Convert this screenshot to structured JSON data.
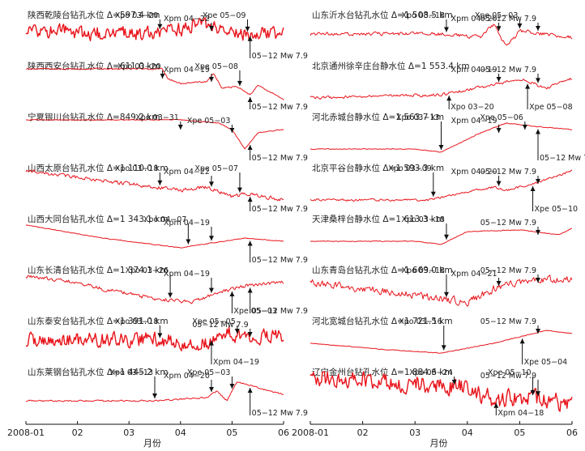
{
  "chart_data": {
    "type": "line",
    "x_unit_label": "月份",
    "x_ticks": [
      "2008-01",
      "02",
      "03",
      "04",
      "05",
      "06"
    ],
    "curve_color": "#e8141b",
    "columns": [
      {
        "panels": [
          {
            "title": "陕西乾陵台钻孔水位 Δ=597.4 km",
            "profile": [
              [
                0.0,
                0.45
              ],
              [
                0.2,
                0.45
              ],
              [
                0.4,
                0.5
              ],
              [
                0.55,
                0.4
              ],
              [
                0.7,
                0.2
              ],
              [
                0.77,
                0.4
              ],
              [
                0.85,
                0.5
              ],
              [
                1.0,
                0.45
              ]
            ],
            "noise": 0.2,
            "events": [
              {
                "label": "Xpo 03−20",
                "x": 0.52,
                "dir": "down"
              },
              {
                "label": "Xpm 04−22",
                "x": 0.72,
                "dir": "down"
              },
              {
                "label": "Xpe 05−09",
                "x": 0.86,
                "dir": "down"
              },
              {
                "label": "05−12 Mw 7.9",
                "x": 0.87,
                "dir": "up"
              }
            ]
          },
          {
            "title": "陕西西安台钻孔水位 Δ=611.0 km",
            "profile": [
              [
                0.0,
                0.0
              ],
              [
                0.53,
                0.0
              ],
              [
                0.55,
                0.3
              ],
              [
                0.6,
                0.45
              ],
              [
                0.7,
                0.4
              ],
              [
                0.73,
                0.15
              ],
              [
                0.76,
                0.6
              ],
              [
                0.82,
                0.55
              ],
              [
                0.87,
                0.8
              ],
              [
                0.9,
                0.5
              ],
              [
                1.0,
                0.95
              ]
            ],
            "noise": 0.02,
            "events": [
              {
                "label": "Xpo 03−20",
                "x": 0.53,
                "dir": "down"
              },
              {
                "label": "Xpm 04−19",
                "x": 0.72,
                "dir": "down"
              },
              {
                "label": "Xpe 05−08",
                "x": 0.83,
                "dir": "down"
              },
              {
                "label": "05−12 Mw 7.9",
                "x": 0.87,
                "dir": "up"
              }
            ]
          },
          {
            "title": "宁夏银川台钻孔水位 Δ=849.2 km",
            "profile": [
              [
                0.0,
                0.0
              ],
              [
                0.6,
                0.0
              ],
              [
                0.75,
                0.1
              ],
              [
                0.8,
                0.3
              ],
              [
                0.85,
                0.9
              ],
              [
                0.9,
                0.4
              ],
              [
                1.0,
                0.3
              ]
            ],
            "noise": 0.01,
            "events": [
              {
                "label": "Xpo 03−31",
                "x": 0.6,
                "dir": "down"
              },
              {
                "label": "Xpe 05−03",
                "x": 0.8,
                "dir": "down"
              },
              {
                "label": "05−12 Mw 7.9",
                "x": 0.87,
                "dir": "up"
              }
            ]
          },
          {
            "title": "山西太原台钻孔水位 Δ=1 110.0 km",
            "profile": [
              [
                0.0,
                0.0
              ],
              [
                0.3,
                0.3
              ],
              [
                0.5,
                0.5
              ],
              [
                0.6,
                0.6
              ],
              [
                0.7,
                0.5
              ],
              [
                0.8,
                0.8
              ],
              [
                0.85,
                0.7
              ],
              [
                1.0,
                0.9
              ]
            ],
            "noise": 0.05,
            "events": [
              {
                "label": "Xpo 03−18",
                "x": 0.52,
                "dir": "down"
              },
              {
                "label": "Xpm 04−22",
                "x": 0.72,
                "dir": "down"
              },
              {
                "label": "Xpe 05−07",
                "x": 0.83,
                "dir": "down"
              },
              {
                "label": "05−12 Mw 7.9",
                "x": 0.87,
                "dir": "up"
              }
            ]
          },
          {
            "title": "山西大同台钻孔水位 Δ=1 343.1 km",
            "profile": [
              [
                0.0,
                0.1
              ],
              [
                0.3,
                0.5
              ],
              [
                0.6,
                0.8
              ],
              [
                0.85,
                0.5
              ],
              [
                1.0,
                0.6
              ]
            ],
            "noise": 0.01,
            "events": [
              {
                "label": "Xpo 04−07",
                "x": 0.63,
                "dir": "down"
              },
              {
                "label": "Xpm 04−19",
                "x": 0.72,
                "dir": "down"
              },
              {
                "label": "05−12 Mw 7.9",
                "x": 0.87,
                "dir": "up"
              }
            ]
          },
          {
            "title": "山东长清台钻孔水位 Δ=1 374.1 km",
            "profile": [
              [
                0.0,
                0.1
              ],
              [
                0.2,
                0.3
              ],
              [
                0.3,
                0.5
              ],
              [
                0.5,
                0.8
              ],
              [
                0.65,
                0.9
              ],
              [
                0.75,
                0.6
              ],
              [
                0.85,
                0.4
              ],
              [
                1.0,
                0.3
              ]
            ],
            "noise": 0.05,
            "events": [
              {
                "label": "Xpo 03−26",
                "x": 0.56,
                "dir": "down"
              },
              {
                "label": "Xpm 04−19",
                "x": 0.72,
                "dir": "down"
              },
              {
                "label": "Xpe 05−03",
                "x": 0.8,
                "dir": "up"
              },
              {
                "label": "05−12 Mw 7.9",
                "x": 0.87,
                "dir": "up"
              }
            ]
          },
          {
            "title": "山东泰安台钻孔水位 Δ=1 391.0 km",
            "profile": [
              [
                0.0,
                0.5
              ],
              [
                0.5,
                0.5
              ],
              [
                0.7,
                0.6
              ],
              [
                0.75,
                0.2
              ],
              [
                0.85,
                0.4
              ],
              [
                1.0,
                0.4
              ]
            ],
            "noise": 0.2,
            "events": [
              {
                "label": "Xpo 03−18",
                "x": 0.52,
                "dir": "down"
              },
              {
                "label": "Xpm 04−19",
                "x": 0.72,
                "dir": "up"
              },
              {
                "label": "Xpe 05−05",
                "x": 0.82,
                "dir": "down"
              },
              {
                "label": "05−12 Mw 7.9",
                "x": 0.87,
                "dir": "down"
              }
            ]
          },
          {
            "title": "山东莱钢台钻孔水位 Δ=1 445.2 km",
            "profile": [
              [
                0.0,
                0.8
              ],
              [
                0.5,
                0.8
              ],
              [
                0.7,
                0.7
              ],
              [
                0.74,
                0.5
              ],
              [
                0.78,
                0.8
              ],
              [
                0.82,
                0.2
              ],
              [
                0.9,
                0.4
              ],
              [
                1.0,
                0.6
              ]
            ],
            "noise": 0.02,
            "events": [
              {
                "label": "Xpo 03−13",
                "x": 0.5,
                "dir": "down"
              },
              {
                "label": "Xpm 04−20",
                "x": 0.72,
                "dir": "down"
              },
              {
                "label": "Xpe 05−03",
                "x": 0.8,
                "dir": "down"
              },
              {
                "label": "05−12 Mw 7.9",
                "x": 0.87,
                "dir": "up"
              }
            ]
          }
        ]
      },
      {
        "panels": [
          {
            "title": "山东沂水台钻孔水位 Δ=1 508.5 km",
            "profile": [
              [
                0.0,
                0.5
              ],
              [
                0.5,
                0.5
              ],
              [
                0.65,
                0.6
              ],
              [
                0.7,
                0.2
              ],
              [
                0.75,
                0.9
              ],
              [
                0.8,
                0.4
              ],
              [
                0.9,
                0.5
              ],
              [
                1.0,
                0.6
              ]
            ],
            "noise": 0.05,
            "events": [
              {
                "label": "Xpo 03−18",
                "x": 0.52,
                "dir": "down"
              },
              {
                "label": "Xpm 04−20",
                "x": 0.72,
                "dir": "down"
              },
              {
                "label": "Xpe 05−03",
                "x": 0.8,
                "dir": "down"
              },
              {
                "label": "05−12 Mw 7.9",
                "x": 0.87,
                "dir": "down"
              }
            ]
          },
          {
            "title": "北京通州徐辛庄台静水位 Δ=1 553.4 km",
            "profile": [
              [
                0.0,
                0.9
              ],
              [
                0.5,
                0.8
              ],
              [
                0.7,
                0.5
              ],
              [
                0.8,
                0.3
              ],
              [
                0.9,
                0.6
              ],
              [
                1.0,
                0.3
              ]
            ],
            "noise": 0.04,
            "events": [
              {
                "label": "Xpo 03−20",
                "x": 0.53,
                "dir": "up"
              },
              {
                "label": "Xpm 04−19",
                "x": 0.72,
                "dir": "down"
              },
              {
                "label": "Xpe 05−08",
                "x": 0.83,
                "dir": "up"
              },
              {
                "label": "05−12 Mw 7.9",
                "x": 0.87,
                "dir": "down"
              }
            ]
          },
          {
            "title": "河北赤城台静水位 Δ=1 563.7 km",
            "profile": [
              [
                0.0,
                0.9
              ],
              [
                0.4,
                0.9
              ],
              [
                0.5,
                1.0
              ],
              [
                0.65,
                0.4
              ],
              [
                0.75,
                0.1
              ],
              [
                0.85,
                0.2
              ],
              [
                1.0,
                0.3
              ]
            ],
            "noise": 0.01,
            "events": [
              {
                "label": "Xpo 03−13",
                "x": 0.5,
                "dir": "down"
              },
              {
                "label": "Xpm 04−19",
                "x": 0.72,
                "dir": "down"
              },
              {
                "label": "Xpe 05−06",
                "x": 0.82,
                "dir": "down"
              },
              {
                "label": "05−12 Mw 7.9",
                "x": 0.87,
                "dir": "up"
              }
            ]
          },
          {
            "title": "北京平谷台静水位 Δ=1 593.3 km",
            "profile": [
              [
                0.0,
                0.9
              ],
              [
                0.45,
                0.9
              ],
              [
                0.7,
                0.5
              ],
              [
                0.75,
                0.6
              ],
              [
                0.85,
                0.4
              ],
              [
                1.0,
                0.0
              ]
            ],
            "noise": 0.03,
            "events": [
              {
                "label": "Xpo 03−09",
                "x": 0.47,
                "dir": "down"
              },
              {
                "label": "Xpm 04−20",
                "x": 0.72,
                "dir": "down"
              },
              {
                "label": "Xpe 05−10",
                "x": 0.85,
                "dir": "up"
              },
              {
                "label": "05−12 Mw 7.9",
                "x": 0.87,
                "dir": "down"
              }
            ]
          },
          {
            "title": "天津桑梓台静水位 Δ=1 613.3 km",
            "profile": [
              [
                0.0,
                0.6
              ],
              [
                0.4,
                0.6
              ],
              [
                0.5,
                0.7
              ],
              [
                0.6,
                0.3
              ],
              [
                0.8,
                0.25
              ],
              [
                0.95,
                0.4
              ],
              [
                1.0,
                0.2
              ]
            ],
            "noise": 0.01,
            "events": [
              {
                "label": "Xpo 03−18",
                "x": 0.52,
                "dir": "down"
              },
              {
                "label": "05−12 Mw 7.9",
                "x": 0.87,
                "dir": "down"
              }
            ]
          },
          {
            "title": "山东青岛台钻孔水位 Δ=1 669.0 km",
            "profile": [
              [
                0.0,
                0.3
              ],
              [
                0.5,
                0.8
              ],
              [
                0.6,
                0.9
              ],
              [
                0.7,
                0.5
              ],
              [
                0.8,
                0.3
              ],
              [
                0.9,
                0.2
              ],
              [
                1.0,
                0.2
              ]
            ],
            "noise": 0.1,
            "events": [
              {
                "label": "Xpo 03−18",
                "x": 0.52,
                "dir": "down"
              },
              {
                "label": "Xpm 04−21",
                "x": 0.72,
                "dir": "down"
              },
              {
                "label": "05−12 Mw 7.9",
                "x": 0.87,
                "dir": "down"
              }
            ]
          },
          {
            "title": "河北宽城台钻孔水位 Δ=1 721.5 km",
            "profile": [
              [
                0.0,
                0.6
              ],
              [
                0.3,
                0.8
              ],
              [
                0.5,
                0.9
              ],
              [
                0.7,
                0.6
              ],
              [
                0.8,
                0.4
              ],
              [
                0.9,
                0.2
              ],
              [
                1.0,
                0.3
              ]
            ],
            "noise": 0.01,
            "events": [
              {
                "label": "Xpo 03−16",
                "x": 0.51,
                "dir": "down"
              },
              {
                "label": "Xpe 05−04",
                "x": 0.81,
                "dir": "up"
              },
              {
                "label": "05−12 Mw 7.9",
                "x": 0.87,
                "dir": "down"
              }
            ]
          },
          {
            "title": "辽宁金州台钻孔水位 Δ=1 884.6 km",
            "profile": [
              [
                0.0,
                0.1
              ],
              [
                0.5,
                0.3
              ],
              [
                0.6,
                0.4
              ],
              [
                0.7,
                0.8
              ],
              [
                0.85,
                0.7
              ],
              [
                1.0,
                0.9
              ]
            ],
            "noise": 0.25,
            "events": [
              {
                "label": "Xpo 03−24",
                "x": 0.55,
                "dir": "down"
              },
              {
                "label": "Xpm 04−18",
                "x": 0.71,
                "dir": "up"
              },
              {
                "label": "Xpe 05−10",
                "x": 0.85,
                "dir": "down"
              },
              {
                "label": "05−12 Mw 7.9",
                "x": 0.87,
                "dir": "down"
              }
            ]
          }
        ]
      }
    ]
  }
}
